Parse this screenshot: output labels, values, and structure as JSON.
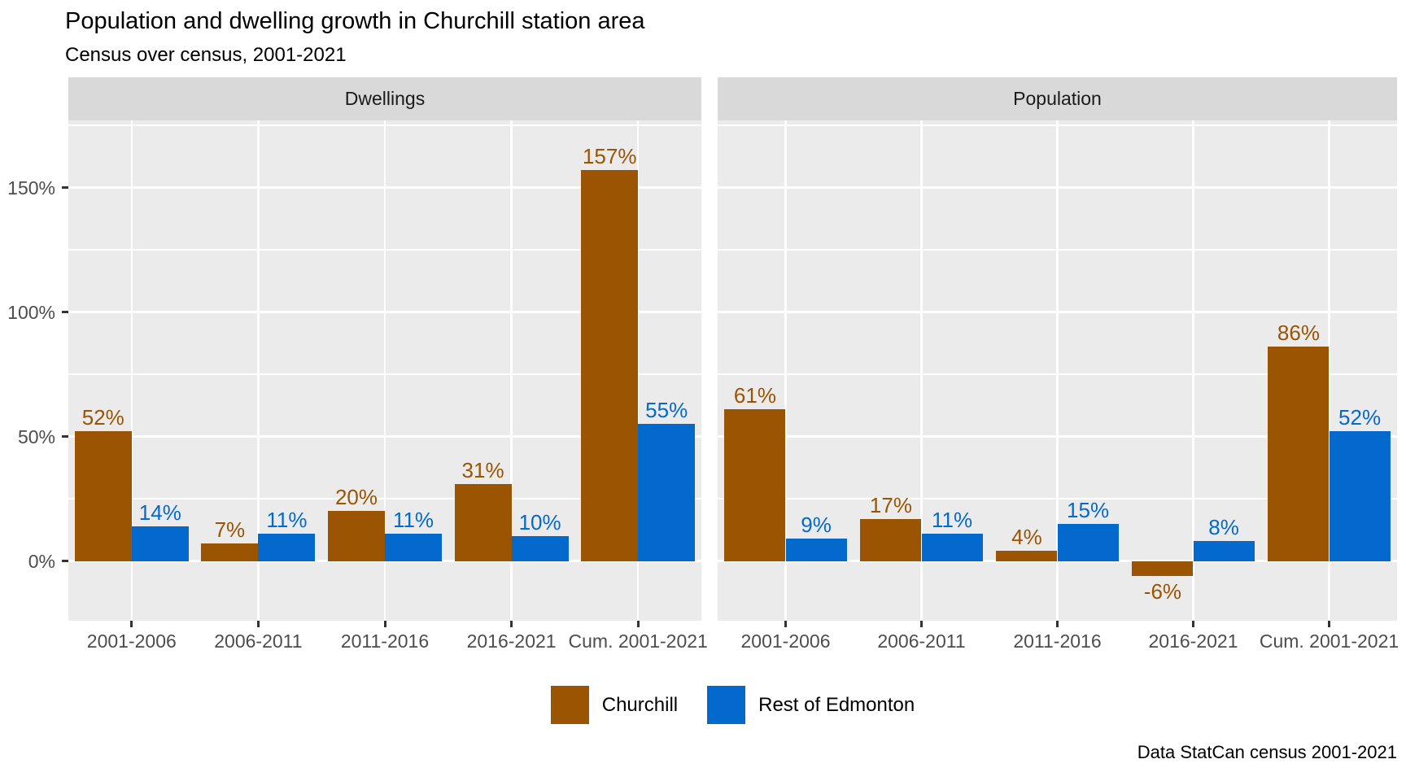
{
  "title": "Population and dwelling growth in Churchill station area",
  "subtitle": "Census over census, 2001-2021",
  "caption": "Data StatCan census 2001-2021",
  "legend": {
    "items": [
      {
        "label": "Churchill",
        "color": "#9A5402"
      },
      {
        "label": "Rest of Edmonton",
        "color": "#0469CC"
      }
    ]
  },
  "chart_data": {
    "type": "bar",
    "title": "Population and dwelling growth in Churchill station area",
    "subtitle": "Census over census, 2001-2021",
    "caption": "Data StatCan census 2001-2021",
    "categories": [
      "2001-2006",
      "2006-2011",
      "2011-2016",
      "2016-2021",
      "Cum. 2001-2021"
    ],
    "facets": [
      {
        "label": "Dwellings",
        "series": [
          {
            "name": "Churchill",
            "color": "#9A5402",
            "values": [
              52,
              7,
              20,
              31,
              157
            ],
            "labels": [
              "52%",
              "7%",
              "20%",
              "31%",
              "157%"
            ]
          },
          {
            "name": "Rest of Edmonton",
            "color": "#0469CC",
            "values": [
              14,
              11,
              11,
              10,
              55
            ],
            "labels": [
              "14%",
              "11%",
              "11%",
              "10%",
              "55%"
            ]
          }
        ]
      },
      {
        "label": "Population",
        "series": [
          {
            "name": "Churchill",
            "color": "#9A5402",
            "values": [
              61,
              17,
              4,
              -6,
              86
            ],
            "labels": [
              "61%",
              "17%",
              "4%",
              "-6%",
              "86%"
            ]
          },
          {
            "name": "Rest of Edmonton",
            "color": "#0469CC",
            "values": [
              9,
              11,
              15,
              8,
              52
            ],
            "labels": [
              "9%",
              "11%",
              "15%",
              "8%",
              "52%"
            ]
          }
        ]
      }
    ],
    "y_axis": {
      "ticks": [
        0,
        50,
        100,
        150
      ],
      "tick_labels": [
        "0%",
        "50%",
        "100%",
        "150%"
      ],
      "minor_ticks": [
        25,
        75,
        125,
        175
      ],
      "ylim": [
        -24,
        177
      ]
    },
    "xlabel": "",
    "ylabel": "",
    "grid": true,
    "legend_position": "bottom",
    "colors": {
      "panel_bg": "#EBEBEB",
      "strip_bg": "#D9D9D9",
      "grid": "#FFFFFF",
      "axis_text": "#4D4D4D",
      "tick": "#333333"
    }
  }
}
